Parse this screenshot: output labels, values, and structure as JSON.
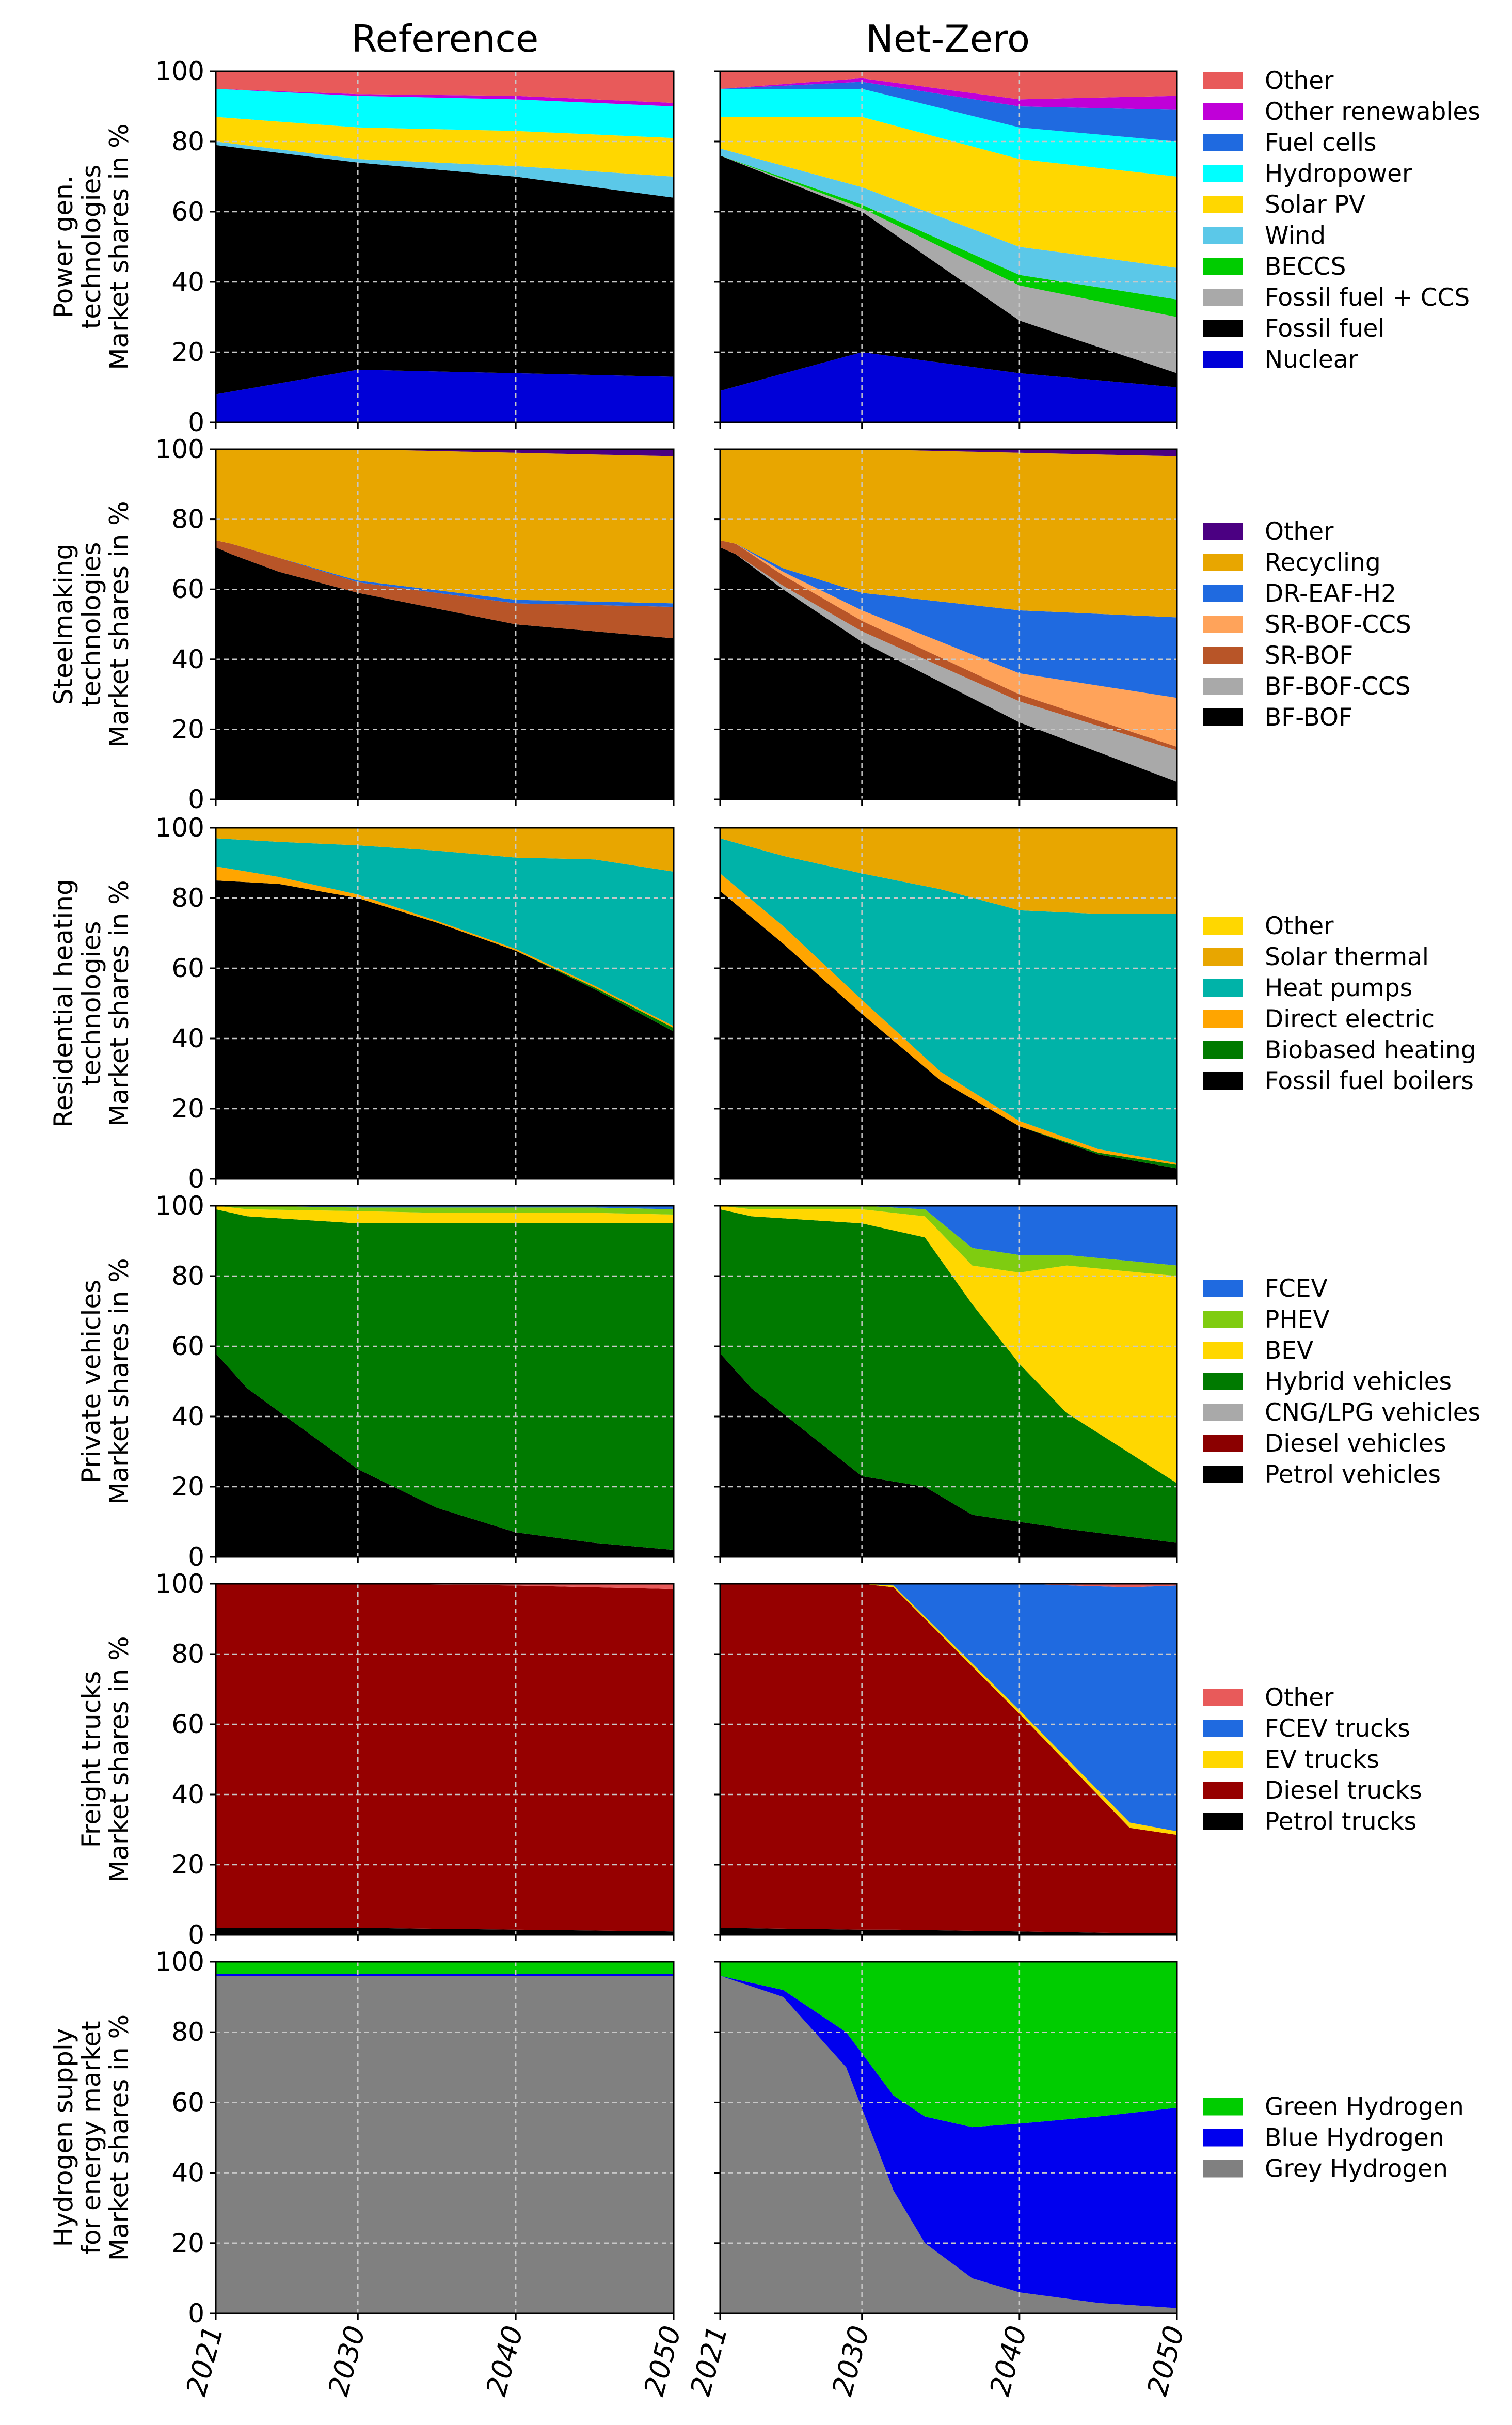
{
  "columns": [
    "Reference",
    "Net-Zero"
  ],
  "x_ticks": [
    "2021",
    "2030",
    "2040",
    "2050"
  ],
  "y_ticks": [
    "0",
    "20",
    "40",
    "60",
    "80",
    "100"
  ],
  "chart_data": [
    {
      "type": "area",
      "title": "Power gen. technologies",
      "ylabel": [
        "Power gen.",
        "technologies",
        "Market shares in %"
      ],
      "xlim": [
        2021,
        2050
      ],
      "ylim": [
        0,
        100
      ],
      "series": [
        {
          "name": "Nuclear",
          "color": "#0000d8"
        },
        {
          "name": "Fossil fuel",
          "color": "#000000"
        },
        {
          "name": "Fossil fuel + CCS",
          "color": "#a9a9a9"
        },
        {
          "name": "BECCS",
          "color": "#00cc00"
        },
        {
          "name": "Wind",
          "color": "#5bc8e8"
        },
        {
          "name": "Solar PV",
          "color": "#ffd700"
        },
        {
          "name": "Hydropower",
          "color": "#00ffff"
        },
        {
          "name": "Fuel cells",
          "color": "#1f6ae0"
        },
        {
          "name": "Other renewables",
          "color": "#c000d8"
        },
        {
          "name": "Other",
          "color": "#e85a5a"
        }
      ],
      "panels": [
        {
          "scenario": "Reference",
          "x": [
            2021,
            2030,
            2040,
            2050
          ],
          "values": {
            "Nuclear": [
              8,
              15,
              14,
              13
            ],
            "Fossil fuel": [
              71,
              59,
              56,
              51
            ],
            "Fossil fuel + CCS": [
              0,
              0,
              0,
              0
            ],
            "BECCS": [
              0,
              0,
              0,
              0
            ],
            "Wind": [
              1,
              1,
              3,
              6
            ],
            "Solar PV": [
              7,
              9,
              10,
              11
            ],
            "Hydropower": [
              8,
              9,
              9,
              9
            ],
            "Fuel cells": [
              0,
              0,
              0,
              0
            ],
            "Other renewables": [
              0,
              0.5,
              1,
              1
            ],
            "Other": [
              5,
              6.5,
              7,
              9
            ]
          }
        },
        {
          "scenario": "Net-Zero",
          "x": [
            2021,
            2030,
            2040,
            2050
          ],
          "values": {
            "Nuclear": [
              9,
              20,
              14,
              10
            ],
            "Fossil fuel": [
              67,
              40,
              15,
              4
            ],
            "Fossil fuel + CCS": [
              0,
              1,
              10,
              16
            ],
            "BECCS": [
              0,
              1,
              3,
              5
            ],
            "Wind": [
              2,
              5,
              8,
              9
            ],
            "Solar PV": [
              9,
              20,
              25,
              26
            ],
            "Hydropower": [
              8,
              8,
              9,
              10
            ],
            "Fuel cells": [
              0,
              2,
              6,
              9
            ],
            "Other renewables": [
              0,
              1,
              2,
              4
            ],
            "Other": [
              5,
              2,
              8,
              7
            ]
          }
        }
      ]
    },
    {
      "type": "area",
      "title": "Steelmaking technologies",
      "ylabel": [
        "Steelmaking",
        "technologies",
        "Market shares in %"
      ],
      "xlim": [
        2021,
        2050
      ],
      "ylim": [
        0,
        100
      ],
      "series": [
        {
          "name": "BF-BOF",
          "color": "#000000"
        },
        {
          "name": "BF-BOF-CCS",
          "color": "#a9a9a9"
        },
        {
          "name": "SR-BOF",
          "color": "#b85528"
        },
        {
          "name": "SR-BOF-CCS",
          "color": "#ffa35a"
        },
        {
          "name": "DR-EAF-H2",
          "color": "#1f6ae0"
        },
        {
          "name": "Recycling",
          "color": "#e8a600"
        },
        {
          "name": "Other",
          "color": "#4b0082"
        }
      ],
      "panels": [
        {
          "scenario": "Reference",
          "x": [
            2021,
            2022,
            2025,
            2030,
            2040,
            2050
          ],
          "values": {
            "BF-BOF": [
              72,
              70,
              65,
              59,
              50,
              46
            ],
            "BF-BOF-CCS": [
              0,
              0,
              0,
              0,
              0,
              0
            ],
            "SR-BOF": [
              2,
              3,
              4,
              3,
              6,
              9
            ],
            "SR-BOF-CCS": [
              0,
              0,
              0,
              0,
              0,
              0
            ],
            "DR-EAF-H2": [
              0,
              0,
              0,
              0.5,
              1,
              1
            ],
            "Recycling": [
              26,
              27,
              31,
              37.5,
              42,
              42
            ],
            "Other": [
              0,
              0,
              0,
              0,
              1,
              2
            ]
          }
        },
        {
          "scenario": "Net-Zero",
          "x": [
            2021,
            2022,
            2025,
            2030,
            2040,
            2050
          ],
          "values": {
            "BF-BOF": [
              72,
              70,
              60,
              45,
              22,
              5
            ],
            "BF-BOF-CCS": [
              0,
              0,
              1,
              3,
              6,
              9
            ],
            "SR-BOF": [
              2,
              3,
              3,
              3,
              2,
              1
            ],
            "SR-BOF-CCS": [
              0,
              0,
              1,
              3,
              6,
              14
            ],
            "DR-EAF-H2": [
              0,
              0,
              1,
              5,
              18,
              23
            ],
            "Recycling": [
              26,
              27,
              34,
              41,
              45,
              46
            ],
            "Other": [
              0,
              0,
              0,
              0,
              1,
              2
            ]
          }
        }
      ]
    },
    {
      "type": "area",
      "title": "Residential heating technologies",
      "ylabel": [
        "Residential heating",
        "technologies",
        "Market shares in %"
      ],
      "xlim": [
        2021,
        2050
      ],
      "ylim": [
        0,
        100
      ],
      "series": [
        {
          "name": "Fossil fuel boilers",
          "color": "#000000"
        },
        {
          "name": "Biobased heating",
          "color": "#007a00"
        },
        {
          "name": "Direct electric",
          "color": "#ffa500"
        },
        {
          "name": "Heat pumps",
          "color": "#00b3a8"
        },
        {
          "name": "Solar thermal",
          "color": "#e8a600"
        },
        {
          "name": "Other",
          "color": "#ffd700"
        }
      ],
      "panels": [
        {
          "scenario": "Reference",
          "x": [
            2021,
            2025,
            2030,
            2035,
            2040,
            2045,
            2050
          ],
          "values": {
            "Fossil fuel boilers": [
              85,
              84,
              80,
              73,
              65,
              54,
              42
            ],
            "Biobased heating": [
              0,
              0,
              0,
              0,
              0,
              0.5,
              1
            ],
            "Direct electric": [
              4,
              2,
              1,
              0.5,
              0.5,
              0.5,
              0.5
            ],
            "Heat pumps": [
              8,
              10,
              14,
              20,
              26,
              36,
              44
            ],
            "Solar thermal": [
              3,
              4,
              5,
              6.5,
              8.5,
              9,
              12.5
            ],
            "Other": [
              0,
              0,
              0,
              0,
              0,
              0,
              0
            ]
          }
        },
        {
          "scenario": "Net-Zero",
          "x": [
            2021,
            2025,
            2030,
            2035,
            2040,
            2045,
            2050
          ],
          "values": {
            "Fossil fuel boilers": [
              82,
              67,
              47,
              28,
              15,
              7,
              3
            ],
            "Biobased heating": [
              0,
              0,
              0,
              0,
              0,
              0.5,
              1
            ],
            "Direct electric": [
              5,
              5,
              4,
              2.5,
              1.5,
              1,
              0.5
            ],
            "Heat pumps": [
              10,
              20,
              36,
              52,
              60,
              67,
              71
            ],
            "Solar thermal": [
              3,
              8,
              13,
              17.5,
              23.5,
              24.5,
              24.5
            ],
            "Other": [
              0,
              0,
              0,
              0,
              0,
              0,
              0
            ]
          }
        }
      ]
    },
    {
      "type": "area",
      "title": "Private vehicles",
      "ylabel": [
        "Private vehicles",
        "Market shares in %"
      ],
      "xlim": [
        2021,
        2050
      ],
      "ylim": [
        0,
        100
      ],
      "series": [
        {
          "name": "Petrol vehicles",
          "color": "#000000"
        },
        {
          "name": "Diesel vehicles",
          "color": "#8b0000"
        },
        {
          "name": "CNG/LPG vehicles",
          "color": "#a9a9a9"
        },
        {
          "name": "Hybrid vehicles",
          "color": "#007a00"
        },
        {
          "name": "BEV",
          "color": "#ffd700"
        },
        {
          "name": "PHEV",
          "color": "#7fcc10"
        },
        {
          "name": "FCEV",
          "color": "#1f6ae0"
        }
      ],
      "panels": [
        {
          "scenario": "Reference",
          "x": [
            2021,
            2023,
            2030,
            2035,
            2040,
            2045,
            2050
          ],
          "values": {
            "Petrol vehicles": [
              58,
              48,
              25,
              14,
              7,
              4,
              2
            ],
            "Diesel vehicles": [
              0,
              0,
              0,
              0,
              0,
              0,
              0
            ],
            "CNG/LPG vehicles": [
              0,
              0,
              0,
              0,
              0,
              0,
              0
            ],
            "Hybrid vehicles": [
              41,
              49,
              70,
              81,
              88,
              91,
              93
            ],
            "BEV": [
              1,
              2,
              3.5,
              3,
              3,
              3,
              2.5
            ],
            "PHEV": [
              0,
              1,
              1,
              1.5,
              1.5,
              1.5,
              1.5
            ],
            "FCEV": [
              0,
              0,
              0.5,
              0.5,
              0.5,
              0.5,
              1
            ]
          }
        },
        {
          "scenario": "Net-Zero",
          "x": [
            2021,
            2023,
            2030,
            2034,
            2037,
            2040,
            2043,
            2050
          ],
          "values": {
            "Petrol vehicles": [
              58,
              48,
              23,
              20,
              12,
              10,
              8,
              4
            ],
            "Diesel vehicles": [
              0,
              0,
              0,
              0,
              0,
              0,
              0,
              0
            ],
            "CNG/LPG vehicles": [
              0,
              0,
              0,
              0,
              0,
              0,
              0,
              0
            ],
            "Hybrid vehicles": [
              41,
              49,
              72,
              71,
              60,
              45,
              33,
              17
            ],
            "BEV": [
              1,
              2,
              4,
              6,
              11,
              26,
              42,
              59
            ],
            "PHEV": [
              0,
              1,
              1,
              2,
              5,
              5,
              3,
              3
            ],
            "FCEV": [
              0,
              0,
              0,
              1,
              12,
              14,
              14,
              17
            ]
          }
        }
      ]
    },
    {
      "type": "area",
      "title": "Freight trucks",
      "ylabel": [
        "Freight trucks",
        "Market shares in %"
      ],
      "xlim": [
        2021,
        2050
      ],
      "ylim": [
        0,
        100
      ],
      "series": [
        {
          "name": "Petrol trucks",
          "color": "#000000"
        },
        {
          "name": "Diesel trucks",
          "color": "#960000"
        },
        {
          "name": "EV trucks",
          "color": "#ffd700"
        },
        {
          "name": "FCEV trucks",
          "color": "#1f6ae0"
        },
        {
          "name": "Other",
          "color": "#e85a5a"
        }
      ],
      "panels": [
        {
          "scenario": "Reference",
          "x": [
            2021,
            2030,
            2040,
            2050
          ],
          "values": {
            "Petrol trucks": [
              2,
              2,
              1.5,
              1
            ],
            "Diesel trucks": [
              98,
              98,
              98,
              97.5
            ],
            "EV trucks": [
              0,
              0,
              0,
              0
            ],
            "FCEV trucks": [
              0,
              0,
              0,
              0
            ],
            "Other": [
              0,
              0,
              0.5,
              1.5
            ]
          }
        },
        {
          "scenario": "Net-Zero",
          "x": [
            2021,
            2030,
            2032,
            2040,
            2047,
            2050
          ],
          "values": {
            "Petrol trucks": [
              2,
              1.5,
              1.5,
              1,
              0.5,
              0.5
            ],
            "Diesel trucks": [
              98,
              98.5,
              97.5,
              62,
              30,
              28
            ],
            "EV trucks": [
              0,
              0,
              0.5,
              1,
              1.5,
              1
            ],
            "FCEV trucks": [
              0,
              0,
              0.5,
              36,
              67,
              70
            ],
            "Other": [
              0,
              0,
              0,
              0,
              1,
              0.5
            ]
          }
        }
      ]
    },
    {
      "type": "area",
      "title": "Hydrogen supply for energy market",
      "ylabel": [
        "Hydrogen supply",
        "for energy market",
        "Market shares in %"
      ],
      "xlim": [
        2021,
        2050
      ],
      "ylim": [
        0,
        100
      ],
      "series": [
        {
          "name": "Grey Hydrogen",
          "color": "#808080"
        },
        {
          "name": "Blue Hydrogen",
          "color": "#0000ee"
        },
        {
          "name": "Green Hydrogen",
          "color": "#00cc00"
        }
      ],
      "panels": [
        {
          "scenario": "Reference",
          "x": [
            2021,
            2050
          ],
          "values": {
            "Grey Hydrogen": [
              96,
              96
            ],
            "Blue Hydrogen": [
              0.5,
              0.5
            ],
            "Green Hydrogen": [
              3.5,
              3.5
            ]
          }
        },
        {
          "scenario": "Net-Zero",
          "x": [
            2021,
            2025,
            2029,
            2032,
            2034,
            2037,
            2040,
            2045,
            2050
          ],
          "values": {
            "Grey Hydrogen": [
              96,
              90,
              70,
              35,
              20,
              10,
              6,
              3,
              1.5
            ],
            "Blue Hydrogen": [
              0,
              2,
              10,
              27,
              36,
              43,
              48,
              53,
              57
            ],
            "Green Hydrogen": [
              4,
              8,
              20,
              38,
              44,
              47,
              46,
              44,
              41.5
            ]
          }
        }
      ]
    }
  ]
}
